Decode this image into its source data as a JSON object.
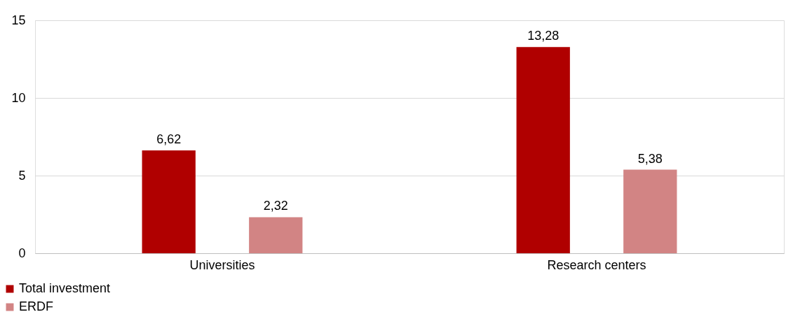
{
  "chart_data": {
    "type": "bar",
    "categories": [
      "Universities",
      "Research centers"
    ],
    "series": [
      {
        "name": "Total investment",
        "color": "#b00000",
        "values": [
          6.62,
          13.28
        ],
        "value_labels": [
          "6,62",
          "13,28"
        ]
      },
      {
        "name": "ERDF",
        "color": "#d28484",
        "values": [
          2.32,
          5.38
        ],
        "value_labels": [
          "2,32",
          "5,38"
        ]
      }
    ],
    "ylim": [
      0,
      15
    ],
    "yticks": [
      0,
      5,
      10,
      15
    ],
    "grid": "y",
    "legend": "bottom left"
  }
}
